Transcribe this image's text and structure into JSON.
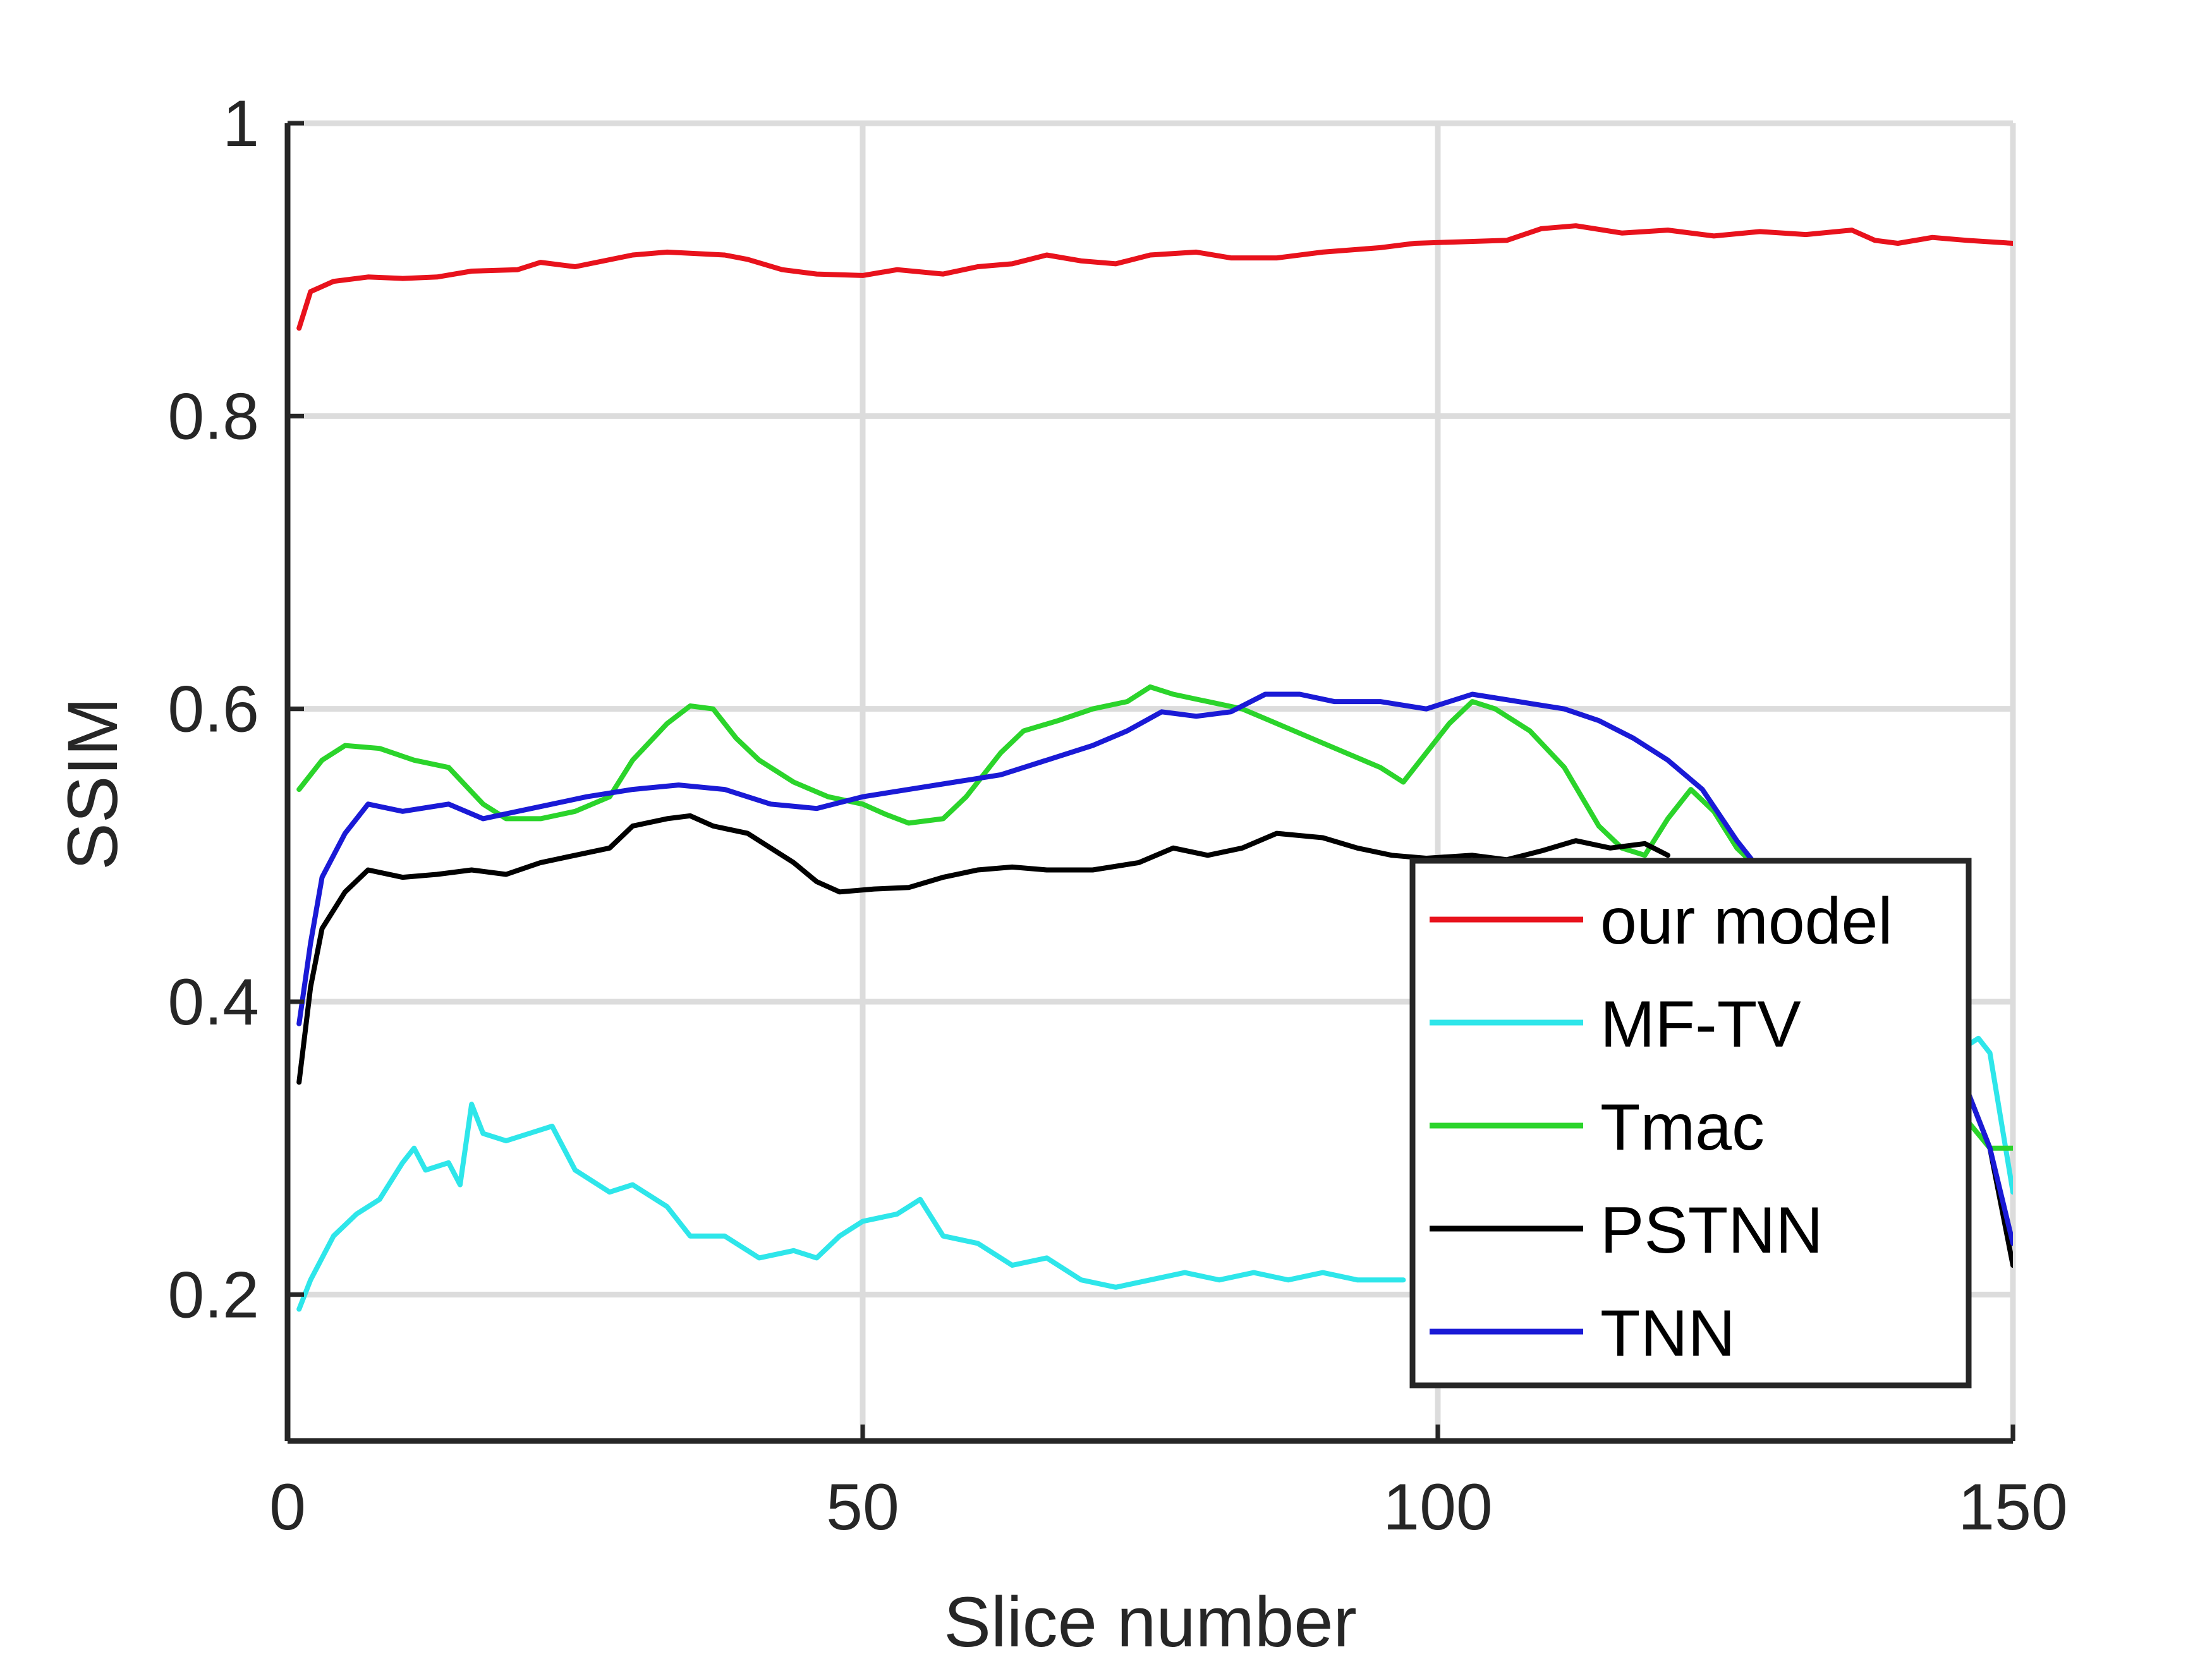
{
  "chart_data": {
    "type": "line",
    "title": "",
    "xlabel": "Slice number",
    "ylabel": "SSIM",
    "xlim": [
      0,
      150
    ],
    "ylim": [
      0.1,
      1
    ],
    "xticks": [
      0,
      50,
      100,
      150
    ],
    "xtick_labels": [
      "0",
      "50",
      "100",
      "150"
    ],
    "yticks": [
      0.2,
      0.4,
      0.6,
      0.8,
      1
    ],
    "ytick_labels": [
      "0.2",
      "0.4",
      "0.6",
      "0.8",
      "1"
    ],
    "grid": true,
    "legend_position": "lower-right",
    "series": [
      {
        "name": "our model",
        "color": "#e8121c",
        "points": [
          [
            1,
            0.86
          ],
          [
            2,
            0.885
          ],
          [
            4,
            0.892
          ],
          [
            7,
            0.895
          ],
          [
            10,
            0.894
          ],
          [
            13,
            0.895
          ],
          [
            16,
            0.899
          ],
          [
            20,
            0.9
          ],
          [
            22,
            0.905
          ],
          [
            25,
            0.902
          ],
          [
            30,
            0.91
          ],
          [
            33,
            0.912
          ],
          [
            38,
            0.91
          ],
          [
            40,
            0.907
          ],
          [
            43,
            0.9
          ],
          [
            46,
            0.897
          ],
          [
            50,
            0.896
          ],
          [
            53,
            0.9
          ],
          [
            57,
            0.897
          ],
          [
            60,
            0.902
          ],
          [
            63,
            0.904
          ],
          [
            66,
            0.91
          ],
          [
            69,
            0.906
          ],
          [
            72,
            0.904
          ],
          [
            75,
            0.91
          ],
          [
            79,
            0.912
          ],
          [
            82,
            0.908
          ],
          [
            86,
            0.908
          ],
          [
            90,
            0.912
          ],
          [
            95,
            0.915
          ],
          [
            98,
            0.918
          ],
          [
            102,
            0.919
          ],
          [
            106,
            0.92
          ],
          [
            109,
            0.928
          ],
          [
            112,
            0.93
          ],
          [
            116,
            0.925
          ],
          [
            120,
            0.927
          ],
          [
            124,
            0.923
          ],
          [
            128,
            0.926
          ],
          [
            132,
            0.924
          ],
          [
            136,
            0.927
          ],
          [
            138,
            0.92
          ],
          [
            140,
            0.918
          ],
          [
            143,
            0.922
          ],
          [
            146,
            0.92
          ],
          [
            150,
            0.918
          ]
        ]
      },
      {
        "name": "MF-TV",
        "color": "#2ee6ea",
        "points": [
          [
            1,
            0.19
          ],
          [
            2,
            0.21
          ],
          [
            4,
            0.24
          ],
          [
            6,
            0.255
          ],
          [
            8,
            0.265
          ],
          [
            10,
            0.29
          ],
          [
            11,
            0.3
          ],
          [
            12,
            0.285
          ],
          [
            14,
            0.29
          ],
          [
            15,
            0.275
          ],
          [
            16,
            0.33
          ],
          [
            17,
            0.31
          ],
          [
            19,
            0.305
          ],
          [
            21,
            0.31
          ],
          [
            23,
            0.315
          ],
          [
            25,
            0.285
          ],
          [
            28,
            0.27
          ],
          [
            30,
            0.275
          ],
          [
            33,
            0.26
          ],
          [
            35,
            0.24
          ],
          [
            38,
            0.24
          ],
          [
            41,
            0.225
          ],
          [
            44,
            0.23
          ],
          [
            46,
            0.225
          ],
          [
            48,
            0.24
          ],
          [
            50,
            0.25
          ],
          [
            53,
            0.255
          ],
          [
            55,
            0.265
          ],
          [
            57,
            0.24
          ],
          [
            60,
            0.235
          ],
          [
            63,
            0.22
          ],
          [
            66,
            0.225
          ],
          [
            69,
            0.21
          ],
          [
            72,
            0.205
          ],
          [
            75,
            0.21
          ],
          [
            78,
            0.215
          ],
          [
            81,
            0.21
          ],
          [
            84,
            0.215
          ],
          [
            87,
            0.21
          ],
          [
            90,
            0.215
          ],
          [
            93,
            0.21
          ],
          [
            97,
            0.21
          ],
          [
            146,
            0.37
          ],
          [
            147,
            0.375
          ],
          [
            148,
            0.365
          ],
          [
            150,
            0.27
          ]
        ]
      },
      {
        "name": "Tmac",
        "color": "#2bd42b",
        "points": [
          [
            1,
            0.545
          ],
          [
            3,
            0.565
          ],
          [
            5,
            0.575
          ],
          [
            8,
            0.573
          ],
          [
            11,
            0.565
          ],
          [
            14,
            0.56
          ],
          [
            17,
            0.535
          ],
          [
            19,
            0.525
          ],
          [
            22,
            0.525
          ],
          [
            25,
            0.53
          ],
          [
            28,
            0.54
          ],
          [
            30,
            0.565
          ],
          [
            33,
            0.59
          ],
          [
            35,
            0.602
          ],
          [
            37,
            0.6
          ],
          [
            39,
            0.58
          ],
          [
            41,
            0.565
          ],
          [
            44,
            0.55
          ],
          [
            47,
            0.54
          ],
          [
            50,
            0.535
          ],
          [
            52,
            0.528
          ],
          [
            54,
            0.522
          ],
          [
            57,
            0.525
          ],
          [
            59,
            0.54
          ],
          [
            62,
            0.57
          ],
          [
            64,
            0.585
          ],
          [
            67,
            0.592
          ],
          [
            70,
            0.6
          ],
          [
            73,
            0.605
          ],
          [
            75,
            0.615
          ],
          [
            77,
            0.61
          ],
          [
            80,
            0.605
          ],
          [
            83,
            0.6
          ],
          [
            86,
            0.59
          ],
          [
            89,
            0.58
          ],
          [
            92,
            0.57
          ],
          [
            95,
            0.56
          ],
          [
            97,
            0.55
          ],
          [
            99,
            0.57
          ],
          [
            101,
            0.59
          ],
          [
            103,
            0.605
          ],
          [
            105,
            0.6
          ],
          [
            108,
            0.585
          ],
          [
            111,
            0.56
          ],
          [
            114,
            0.52
          ],
          [
            116,
            0.505
          ],
          [
            118,
            0.5
          ],
          [
            120,
            0.525
          ],
          [
            122,
            0.545
          ],
          [
            124,
            0.53
          ],
          [
            126,
            0.505
          ],
          [
            128,
            0.49
          ],
          [
            148,
            0.3
          ],
          [
            150,
            0.3
          ]
        ]
      },
      {
        "name": "PSTNN",
        "color": "#000000",
        "points": [
          [
            1,
            0.345
          ],
          [
            2,
            0.41
          ],
          [
            3,
            0.45
          ],
          [
            5,
            0.475
          ],
          [
            7,
            0.49
          ],
          [
            10,
            0.485
          ],
          [
            13,
            0.487
          ],
          [
            16,
            0.49
          ],
          [
            19,
            0.487
          ],
          [
            22,
            0.495
          ],
          [
            25,
            0.5
          ],
          [
            28,
            0.505
          ],
          [
            30,
            0.52
          ],
          [
            33,
            0.525
          ],
          [
            35,
            0.527
          ],
          [
            37,
            0.52
          ],
          [
            40,
            0.515
          ],
          [
            42,
            0.505
          ],
          [
            44,
            0.495
          ],
          [
            46,
            0.482
          ],
          [
            48,
            0.475
          ],
          [
            51,
            0.477
          ],
          [
            54,
            0.478
          ],
          [
            57,
            0.485
          ],
          [
            60,
            0.49
          ],
          [
            63,
            0.492
          ],
          [
            66,
            0.49
          ],
          [
            70,
            0.49
          ],
          [
            74,
            0.495
          ],
          [
            77,
            0.505
          ],
          [
            80,
            0.5
          ],
          [
            83,
            0.505
          ],
          [
            86,
            0.515
          ],
          [
            90,
            0.512
          ],
          [
            93,
            0.505
          ],
          [
            96,
            0.5
          ],
          [
            99,
            0.498
          ],
          [
            103,
            0.5
          ],
          [
            106,
            0.497
          ],
          [
            109,
            0.503
          ],
          [
            112,
            0.51
          ],
          [
            115,
            0.505
          ],
          [
            118,
            0.508
          ],
          [
            120,
            0.5
          ],
          [
            146,
            0.34
          ],
          [
            148,
            0.3
          ],
          [
            150,
            0.22
          ]
        ]
      },
      {
        "name": "TNN",
        "color": "#1a1ad6",
        "points": [
          [
            1,
            0.385
          ],
          [
            2,
            0.44
          ],
          [
            3,
            0.485
          ],
          [
            5,
            0.515
          ],
          [
            7,
            0.535
          ],
          [
            10,
            0.53
          ],
          [
            14,
            0.535
          ],
          [
            17,
            0.525
          ],
          [
            20,
            0.53
          ],
          [
            23,
            0.535
          ],
          [
            26,
            0.54
          ],
          [
            30,
            0.545
          ],
          [
            34,
            0.548
          ],
          [
            38,
            0.545
          ],
          [
            42,
            0.535
          ],
          [
            46,
            0.532
          ],
          [
            50,
            0.54
          ],
          [
            54,
            0.545
          ],
          [
            58,
            0.55
          ],
          [
            62,
            0.555
          ],
          [
            66,
            0.565
          ],
          [
            70,
            0.575
          ],
          [
            73,
            0.585
          ],
          [
            76,
            0.598
          ],
          [
            79,
            0.595
          ],
          [
            82,
            0.598
          ],
          [
            85,
            0.61
          ],
          [
            88,
            0.61
          ],
          [
            91,
            0.605
          ],
          [
            95,
            0.605
          ],
          [
            99,
            0.6
          ],
          [
            103,
            0.61
          ],
          [
            107,
            0.605
          ],
          [
            111,
            0.6
          ],
          [
            114,
            0.592
          ],
          [
            117,
            0.58
          ],
          [
            120,
            0.565
          ],
          [
            123,
            0.545
          ],
          [
            126,
            0.51
          ],
          [
            128,
            0.49
          ],
          [
            146,
            0.34
          ],
          [
            148,
            0.3
          ],
          [
            150,
            0.235
          ]
        ]
      }
    ]
  }
}
